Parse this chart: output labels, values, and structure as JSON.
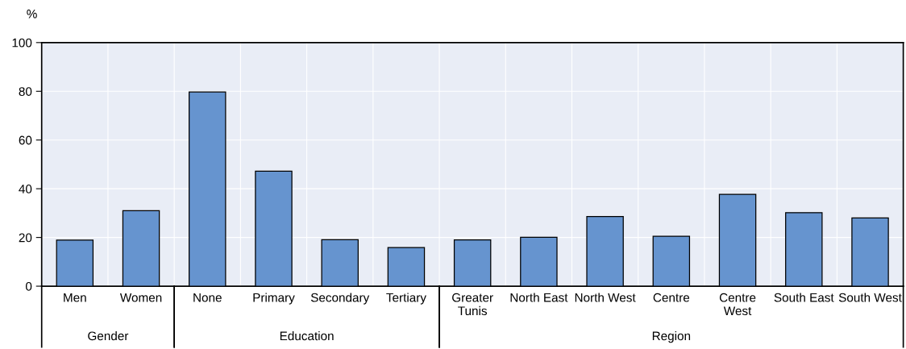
{
  "chart_data": {
    "type": "bar",
    "ylabel": "%",
    "categories": [
      "Men",
      "Women",
      "None",
      "Primary",
      "Secondary",
      "Tertiary",
      "Greater\nTunis",
      "North East",
      "North West",
      "Centre",
      "Centre\nWest",
      "South East",
      "South West"
    ],
    "values": [
      18.9,
      31.0,
      79.7,
      47.2,
      19.1,
      15.9,
      19.0,
      20.1,
      28.6,
      20.5,
      37.7,
      30.2,
      28.0
    ],
    "color": "#6694cf",
    "ylim": [
      0,
      100
    ],
    "yticks": [
      0,
      20,
      40,
      60,
      80,
      100
    ],
    "grid": true,
    "annotations": [
      "Gender",
      "Education",
      "Region"
    ]
  }
}
